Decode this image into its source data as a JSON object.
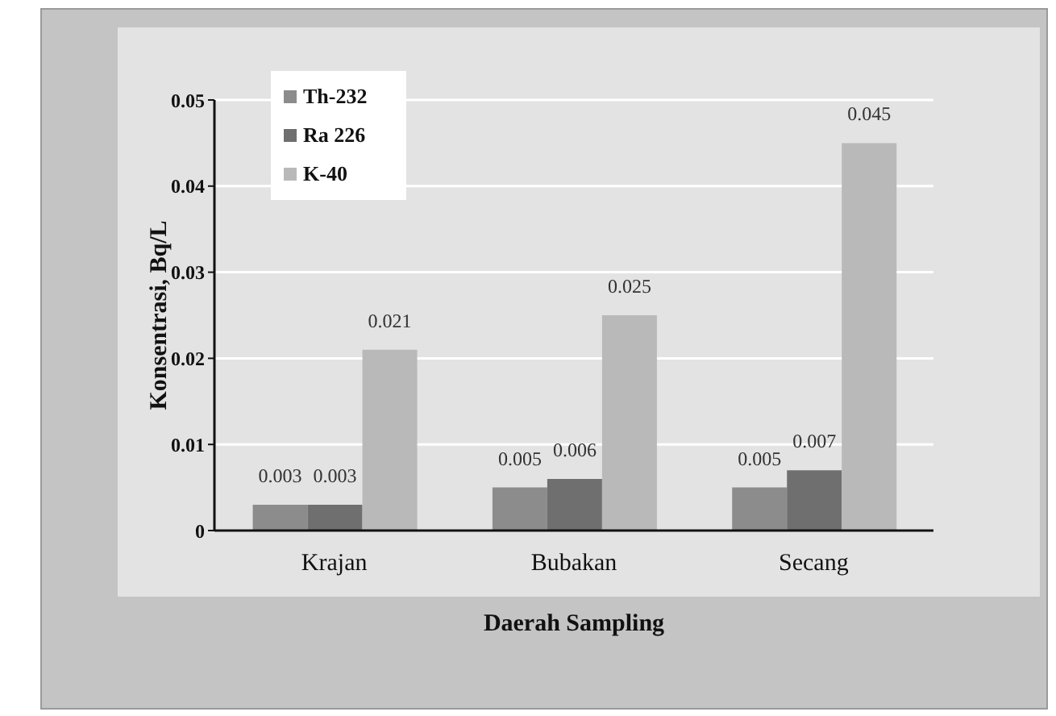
{
  "chart_data": {
    "type": "bar",
    "xlabel": "Daerah Sampling",
    "ylabel": "Konsentrasi, Bq/L",
    "categories": [
      "Krajan",
      "Bubakan",
      "Secang"
    ],
    "series": [
      {
        "name": "Th-232",
        "color": "#8c8c8c",
        "values": [
          0.003,
          0.005,
          0.005
        ]
      },
      {
        "name": "Ra 226",
        "color": "#6f6f6f",
        "values": [
          0.003,
          0.006,
          0.007
        ]
      },
      {
        "name": "K-40",
        "color": "#b9b9b9",
        "values": [
          0.021,
          0.025,
          0.045
        ]
      }
    ],
    "ylim": [
      0,
      0.05
    ],
    "yticks": [
      0,
      0.01,
      0.02,
      0.03,
      0.04,
      0.05
    ],
    "grid": "y",
    "legend": "top left",
    "data_labels": true
  }
}
